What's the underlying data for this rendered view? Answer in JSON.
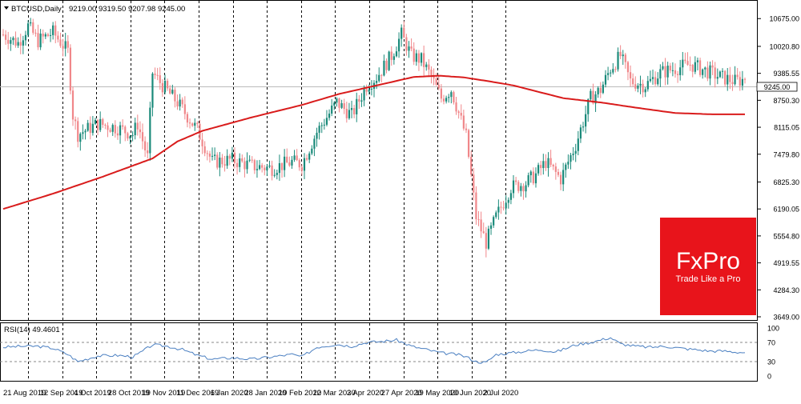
{
  "window": {
    "dropdown_icon": "triangle-down-icon",
    "symbol_label": "BTCUSD,Daily",
    "ohlc_label": "9219.00 9319.50 9207.98 9245.00"
  },
  "current_price_label": "9245.00",
  "rsi_label": "RSI(14) 49.4601",
  "logo": {
    "brand": "FxPro",
    "tagline": "Trade Like a Pro",
    "bg_color": "#e8141b"
  },
  "colors": {
    "bull": "#1a8a7a",
    "bear": "#f0878a",
    "ma": "#d91c1c",
    "rsi": "#4a7fc1",
    "grid": "#000000",
    "price_line": "#bbbbbb"
  },
  "chart_data": [
    {
      "type": "candlestick",
      "title": "BTCUSD,Daily",
      "ylim": [
        3649.0,
        11000.0
      ],
      "ytick_labels": [
        "10675.00",
        "10020.80",
        "9385.55",
        "8750.30",
        "8115.05",
        "7479.80",
        "6825.30",
        "6190.05",
        "5554.80",
        "4919.55",
        "4284.30",
        "3649.00"
      ],
      "xtick_labels": [
        "21 Aug 2019",
        "12 Sep 2019",
        "4 Oct 2019",
        "28 Oct 2019",
        "19 Nov 2019",
        "11 Dec 2019",
        "6 Jan 2020",
        "28 Jan 2020",
        "19 Feb 2020",
        "12 Mar 2020",
        "3 Apr 2020",
        "27 Apr 2020",
        "19 May 2020",
        "10 Jun 2020",
        "2 Jul 2020"
      ],
      "close_path": [
        [
          0,
          10300
        ],
        [
          6,
          10100
        ],
        [
          10,
          10500
        ],
        [
          14,
          10150
        ],
        [
          20,
          10350
        ],
        [
          26,
          9900
        ],
        [
          28,
          8400
        ],
        [
          30,
          7950
        ],
        [
          38,
          8200
        ],
        [
          46,
          8100
        ],
        [
          52,
          7950
        ],
        [
          54,
          8200
        ],
        [
          58,
          7400
        ],
        [
          60,
          9400
        ],
        [
          64,
          9100
        ],
        [
          70,
          8700
        ],
        [
          78,
          8050
        ],
        [
          84,
          7300
        ],
        [
          92,
          7350
        ],
        [
          100,
          7200
        ],
        [
          108,
          7150
        ],
        [
          116,
          7300
        ],
        [
          120,
          7250
        ],
        [
          126,
          8000
        ],
        [
          134,
          8700
        ],
        [
          140,
          8400
        ],
        [
          146,
          9100
        ],
        [
          150,
          9300
        ],
        [
          156,
          9800
        ],
        [
          160,
          10300
        ],
        [
          164,
          9800
        ],
        [
          168,
          9700
        ],
        [
          172,
          9300
        ],
        [
          176,
          8800
        ],
        [
          180,
          9000
        ],
        [
          186,
          7900
        ],
        [
          190,
          6000
        ],
        [
          194,
          5400
        ],
        [
          198,
          6000
        ],
        [
          204,
          6700
        ],
        [
          210,
          6800
        ],
        [
          214,
          7000
        ],
        [
          218,
          7300
        ],
        [
          224,
          6900
        ],
        [
          230,
          7700
        ],
        [
          236,
          8800
        ],
        [
          240,
          9000
        ],
        [
          244,
          9500
        ],
        [
          248,
          9800
        ],
        [
          252,
          9200
        ],
        [
          258,
          9100
        ],
        [
          264,
          9400
        ],
        [
          270,
          9500
        ],
        [
          276,
          9600
        ],
        [
          282,
          9450
        ],
        [
          288,
          9300
        ],
        [
          294,
          9200
        ],
        [
          298,
          9245
        ]
      ],
      "ma_path": [
        [
          0,
          6190
        ],
        [
          20,
          6550
        ],
        [
          40,
          6950
        ],
        [
          60,
          7380
        ],
        [
          70,
          7780
        ],
        [
          80,
          8030
        ],
        [
          100,
          8350
        ],
        [
          120,
          8640
        ],
        [
          135,
          8900
        ],
        [
          150,
          9100
        ],
        [
          165,
          9300
        ],
        [
          175,
          9330
        ],
        [
          185,
          9290
        ],
        [
          195,
          9200
        ],
        [
          205,
          9100
        ],
        [
          215,
          8950
        ],
        [
          225,
          8800
        ],
        [
          240,
          8700
        ],
        [
          255,
          8570
        ],
        [
          270,
          8450
        ],
        [
          285,
          8420
        ],
        [
          298,
          8420
        ]
      ],
      "current_price": 9245.0
    },
    {
      "type": "line",
      "title": "RSI(14) 49.4601",
      "ylim": [
        0,
        100
      ],
      "ytick_labels": [
        "100",
        "70",
        "30",
        "0"
      ],
      "levels": [
        70,
        30
      ],
      "values": [
        [
          0,
          60
        ],
        [
          8,
          62
        ],
        [
          14,
          62
        ],
        [
          20,
          58
        ],
        [
          26,
          45
        ],
        [
          30,
          30
        ],
        [
          38,
          42
        ],
        [
          46,
          43
        ],
        [
          52,
          40
        ],
        [
          54,
          45
        ],
        [
          60,
          65
        ],
        [
          66,
          62
        ],
        [
          72,
          55
        ],
        [
          78,
          43
        ],
        [
          84,
          35
        ],
        [
          92,
          38
        ],
        [
          100,
          35
        ],
        [
          108,
          40
        ],
        [
          116,
          45
        ],
        [
          120,
          40
        ],
        [
          126,
          60
        ],
        [
          134,
          66
        ],
        [
          140,
          62
        ],
        [
          146,
          70
        ],
        [
          152,
          72
        ],
        [
          158,
          75
        ],
        [
          164,
          62
        ],
        [
          170,
          55
        ],
        [
          176,
          48
        ],
        [
          182,
          45
        ],
        [
          186,
          40
        ],
        [
          190,
          30
        ],
        [
          194,
          28
        ],
        [
          198,
          45
        ],
        [
          204,
          48
        ],
        [
          210,
          52
        ],
        [
          216,
          55
        ],
        [
          222,
          50
        ],
        [
          230,
          65
        ],
        [
          236,
          70
        ],
        [
          240,
          75
        ],
        [
          244,
          80
        ],
        [
          248,
          67
        ],
        [
          254,
          62
        ],
        [
          260,
          60
        ],
        [
          266,
          62
        ],
        [
          272,
          58
        ],
        [
          278,
          55
        ],
        [
          284,
          52
        ],
        [
          290,
          52
        ],
        [
          294,
          50
        ],
        [
          298,
          49
        ]
      ]
    }
  ]
}
